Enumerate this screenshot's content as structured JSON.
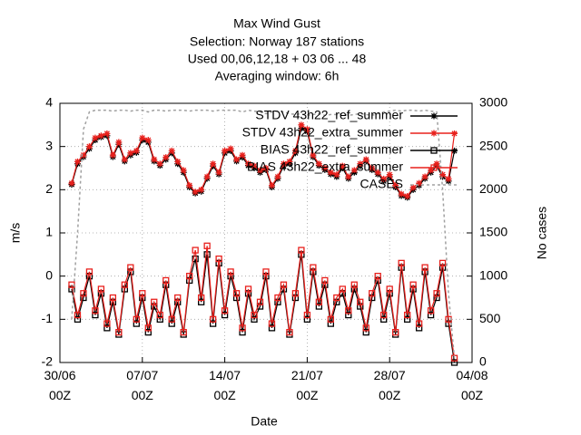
{
  "chart_data": {
    "type": "line",
    "title": [
      "Max Wind Gust",
      "Selection: Norway    187 stations",
      "Used  00,06,12,18  + 03 06 ... 48",
      "Averaging window:  6h"
    ],
    "xlabel": "Date",
    "ylabel": "m/s",
    "y2label": "No cases",
    "xlim": [
      0,
      35
    ],
    "xticks": [
      {
        "value": 0,
        "label": "30/06 00Z"
      },
      {
        "value": 7,
        "label": "07/07 00Z"
      },
      {
        "value": 14,
        "label": "14/07 00Z"
      },
      {
        "value": 21,
        "label": "21/07 00Z"
      },
      {
        "value": 28,
        "label": "28/07 00Z"
      },
      {
        "value": 35,
        "label": "04/08 00Z"
      }
    ],
    "ylim": [
      -2,
      4
    ],
    "yticks": [
      -2,
      -1,
      0,
      1,
      2,
      3,
      4
    ],
    "y2lim": [
      0,
      3000
    ],
    "y2ticks": [
      0,
      500,
      1000,
      1500,
      2000,
      2500,
      3000
    ],
    "grid": true,
    "legend": "top right",
    "x": [
      1,
      1.5,
      2,
      2.5,
      3,
      3.5,
      4,
      4.5,
      5,
      5.5,
      6,
      6.5,
      7,
      7.5,
      8,
      8.5,
      9,
      9.5,
      10,
      10.5,
      11,
      11.5,
      12,
      12.5,
      13,
      13.5,
      14,
      14.5,
      15,
      15.5,
      16,
      16.5,
      17,
      17.5,
      18,
      18.5,
      19,
      19.5,
      20,
      20.5,
      21,
      21.5,
      22,
      22.5,
      23,
      23.5,
      24,
      24.5,
      25,
      25.5,
      26,
      26.5,
      27,
      27.5,
      28,
      28.5,
      29,
      29.5,
      30,
      30.5,
      31,
      31.5,
      32,
      32.5,
      33,
      33.5
    ],
    "series": [
      {
        "name": "STDV 43h22_ref_summer",
        "color": "#000000",
        "marker": "star",
        "values": [
          2.12,
          2.6,
          2.76,
          2.95,
          3.15,
          3.22,
          3.25,
          2.76,
          3.05,
          2.66,
          2.8,
          2.86,
          3.15,
          3.1,
          2.66,
          2.56,
          2.7,
          2.85,
          2.6,
          2.4,
          2.06,
          1.92,
          1.96,
          2.26,
          2.55,
          2.36,
          2.85,
          2.9,
          2.66,
          2.75,
          2.56,
          2.5,
          2.4,
          2.46,
          2.06,
          2.26,
          2.55,
          2.6,
          2.85,
          3.42,
          3.35,
          2.76,
          2.56,
          2.46,
          2.36,
          2.3,
          2.5,
          2.26,
          2.4,
          2.55,
          2.66,
          2.46,
          2.36,
          2.2,
          2.3,
          2.06,
          1.86,
          1.82,
          2.0,
          2.1,
          2.26,
          2.4,
          2.55,
          2.3,
          2.2,
          2.9
        ]
      },
      {
        "name": "STDV 43h22_extra_summer",
        "color": "#e8201c",
        "marker": "star",
        "values": [
          2.15,
          2.65,
          2.8,
          3.0,
          3.2,
          3.25,
          3.3,
          2.8,
          3.1,
          2.7,
          2.85,
          2.9,
          3.2,
          3.15,
          2.7,
          2.6,
          2.75,
          2.9,
          2.65,
          2.45,
          2.1,
          1.95,
          2.0,
          2.3,
          2.6,
          2.4,
          2.9,
          2.95,
          2.7,
          2.8,
          2.6,
          2.55,
          2.45,
          2.5,
          2.1,
          2.3,
          2.6,
          2.65,
          2.9,
          3.5,
          3.4,
          2.8,
          2.6,
          2.5,
          2.4,
          2.35,
          2.55,
          2.3,
          2.45,
          2.6,
          2.7,
          2.5,
          2.4,
          2.25,
          2.35,
          2.1,
          1.9,
          1.85,
          2.05,
          2.15,
          2.3,
          2.45,
          2.6,
          2.35,
          2.25,
          3.3
        ]
      },
      {
        "name": "BIAS 43h22_ref_summer",
        "color": "#000000",
        "marker": "square",
        "values": [
          -0.3,
          -1.0,
          -0.5,
          0.0,
          -0.9,
          -0.4,
          -1.2,
          -0.6,
          -1.35,
          -0.3,
          0.1,
          -1.1,
          -0.5,
          -1.3,
          -0.7,
          -1.0,
          -0.2,
          -1.1,
          -0.6,
          -1.35,
          -0.1,
          0.4,
          -0.6,
          0.5,
          -1.1,
          0.3,
          -0.9,
          0.0,
          -0.5,
          -1.3,
          -0.4,
          -1.0,
          -0.7,
          0.0,
          -1.2,
          -0.6,
          -0.3,
          -1.35,
          -0.5,
          0.5,
          -1.0,
          0.1,
          -0.7,
          -0.2,
          -1.1,
          -0.6,
          -0.4,
          -0.9,
          -0.3,
          -0.7,
          -1.3,
          -0.5,
          -0.1,
          -1.0,
          -0.4,
          -1.35,
          0.2,
          -1.0,
          -0.3,
          -1.2,
          0.1,
          -0.9,
          -0.5,
          0.2,
          -1.1,
          -2.0
        ]
      },
      {
        "name": "BIAS 43h22_extra_summer",
        "color": "#e8201c",
        "marker": "square",
        "values": [
          -0.2,
          -0.9,
          -0.4,
          0.1,
          -0.8,
          -0.3,
          -1.1,
          -0.5,
          -1.3,
          -0.2,
          0.2,
          -1.0,
          -0.4,
          -1.2,
          -0.6,
          -0.9,
          -0.1,
          -1.0,
          -0.5,
          -1.3,
          0.0,
          0.6,
          -0.5,
          0.7,
          -1.0,
          0.4,
          -0.8,
          0.1,
          -0.4,
          -1.2,
          -0.3,
          -0.9,
          -0.6,
          0.1,
          -1.1,
          -0.5,
          -0.2,
          -1.3,
          -0.4,
          0.6,
          -0.9,
          0.2,
          -0.6,
          -0.1,
          -1.0,
          -0.5,
          -0.3,
          -0.8,
          -0.2,
          -0.6,
          -1.2,
          -0.4,
          0.0,
          -0.9,
          -0.3,
          -1.3,
          0.3,
          -0.9,
          -0.2,
          -1.1,
          0.2,
          -0.8,
          -0.4,
          0.3,
          -1.0,
          -1.9
        ]
      },
      {
        "name": "CASES",
        "color": "#a0a0a0",
        "marker": "none",
        "axis": "y2",
        "values": [
          500,
          1500,
          2700,
          2900,
          2920,
          2920,
          2920,
          2910,
          2920,
          2920,
          2910,
          2920,
          2920,
          2900,
          2920,
          2920,
          2910,
          2920,
          2920,
          2920,
          2910,
          2920,
          2920,
          2920,
          2910,
          2920,
          2920,
          2920,
          2920,
          2900,
          2920,
          2910,
          2900,
          2880,
          2900,
          2910,
          2900,
          2880,
          2870,
          2880,
          2860,
          2870,
          2880,
          2860,
          2870,
          2870,
          2880,
          2860,
          2870,
          2880,
          2870,
          2860,
          2880,
          2900,
          2910,
          2920,
          2910,
          2920,
          2920,
          2910,
          2920,
          2910,
          2900,
          2000,
          800,
          50
        ]
      }
    ]
  }
}
